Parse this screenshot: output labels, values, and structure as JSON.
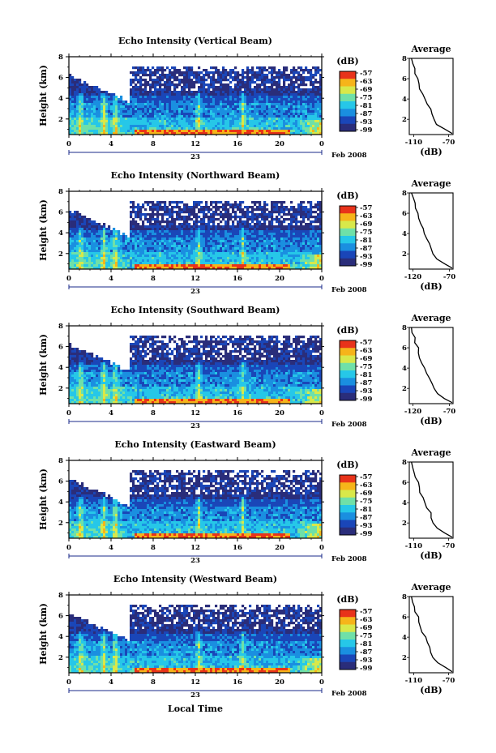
{
  "chart_data": {
    "type": "heatmap",
    "date_label": "23",
    "month_year": "Feb 2008",
    "x_ticks": [
      "0",
      "4",
      "8",
      "12",
      "16",
      "20",
      "0"
    ],
    "xlim": [
      0,
      24
    ],
    "xlabel": "Local Time",
    "ylabel": "Height (km)",
    "ylim": [
      0.5,
      8
    ],
    "y_ticks": [
      "2",
      "4",
      "6",
      "8"
    ],
    "colorbar_unit": "(dB)",
    "colorbar_ticks": [
      "-57",
      "-63",
      "-69",
      "-75",
      "-81",
      "-87",
      "-93",
      "-99"
    ],
    "colors": [
      "#2a2d7a",
      "#1a46b8",
      "#1a8fe0",
      "#26c7e8",
      "#6fe0a8",
      "#d8e84a",
      "#f6b41a",
      "#e8331a"
    ],
    "avg_title": "Average",
    "avg_xlabel": "(dB)",
    "panels": [
      {
        "title": "Echo Intensity (Vertical Beam)",
        "avg_xticks": [
          "-110",
          "-70"
        ],
        "avg_xlim": [
          -115,
          -65
        ]
      },
      {
        "title": "Echo Intensity (Northward Beam)",
        "avg_xticks": [
          "-120",
          "-70"
        ],
        "avg_xlim": [
          -125,
          -65
        ]
      },
      {
        "title": "Echo Intensity (Southward Beam)",
        "avg_xticks": [
          "-120",
          "-70"
        ],
        "avg_xlim": [
          -125,
          -65
        ]
      },
      {
        "title": "Echo Intensity (Eastward Beam)",
        "avg_xticks": [
          "-110",
          "-70"
        ],
        "avg_xlim": [
          -115,
          -65
        ]
      },
      {
        "title": "Echo Intensity (Westward Beam)",
        "avg_xticks": [
          "-110",
          "-70"
        ],
        "avg_xlim": [
          -115,
          -65
        ]
      }
    ],
    "average_profile": {
      "height_km": [
        0.6,
        1.0,
        1.5,
        2.0,
        2.5,
        3.0,
        3.5,
        4.0,
        4.5,
        5.0,
        5.5,
        6.0,
        6.5,
        7.0,
        7.5,
        8.0
      ],
      "db_fraction": [
        0.98,
        0.82,
        0.64,
        0.55,
        0.5,
        0.48,
        0.4,
        0.36,
        0.3,
        0.24,
        0.22,
        0.2,
        0.14,
        0.12,
        0.08,
        0.05
      ]
    }
  }
}
